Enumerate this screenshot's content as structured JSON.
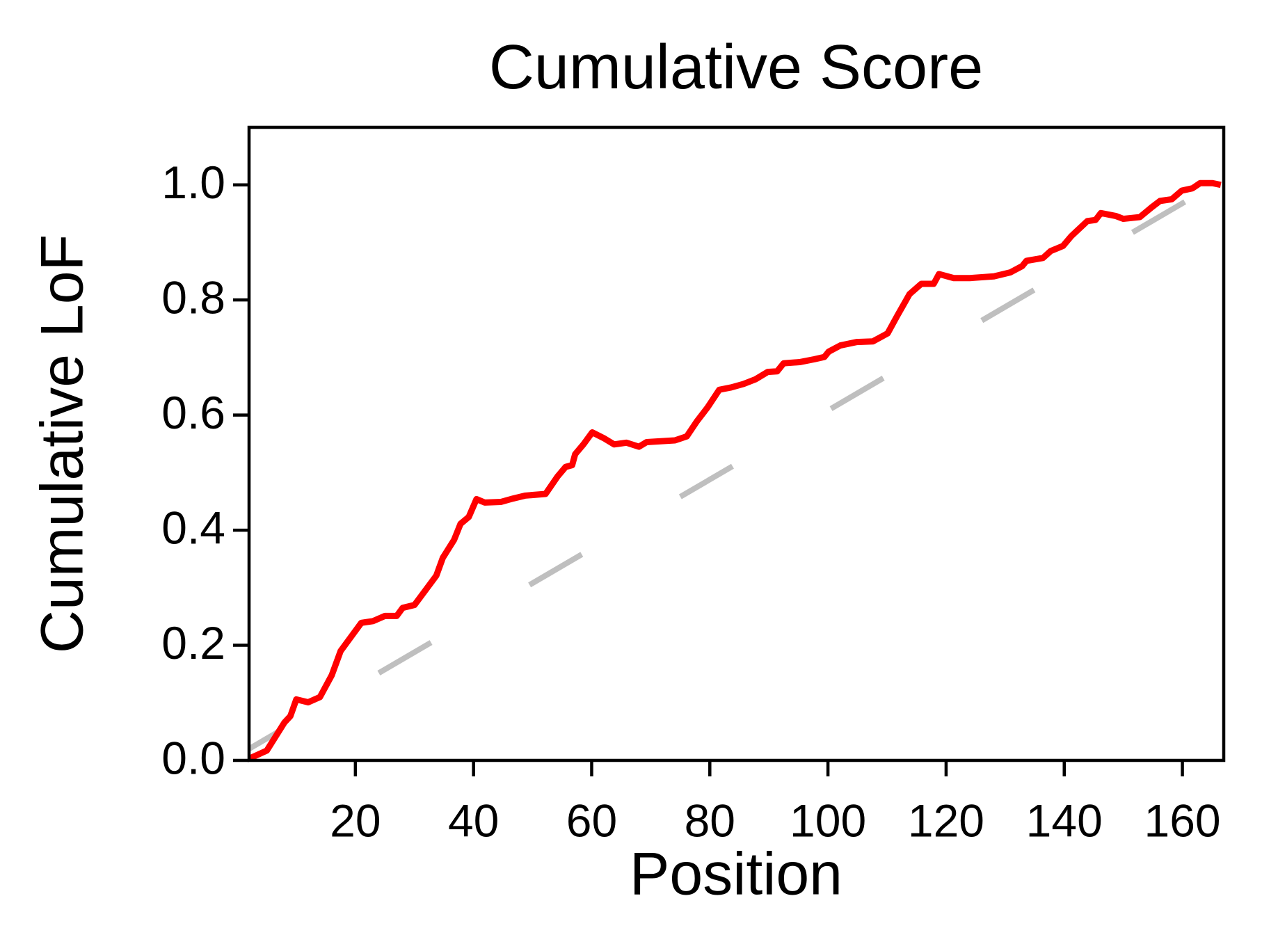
{
  "chart_data": {
    "type": "line",
    "title": "Cumulative Score",
    "x_label": "Position",
    "y_label": "Cumulative LoF",
    "xlim": [
      2,
      167
    ],
    "ylim": [
      0,
      1.1
    ],
    "xticks": [
      20,
      40,
      60,
      80,
      100,
      120,
      140,
      160
    ],
    "yticks": [
      {
        "value": 0,
        "label": "0.0"
      },
      0.2,
      0.4,
      0.6,
      0.8,
      {
        "value": 1,
        "label": "1.0"
      }
    ],
    "grid": false,
    "series": [
      {
        "color": "#bfbfbf",
        "dash": true,
        "x": [
          2,
          167
        ],
        "values": [
          0.02,
          1.01
        ]
      },
      {
        "color": "#ff0000",
        "dash": false,
        "x": [
          2,
          5,
          8,
          9,
          10,
          12,
          14,
          16,
          17.5,
          19,
          21,
          23,
          25,
          27,
          28,
          30,
          31.6,
          33.7,
          34.8,
          36.7,
          37.8,
          39.2,
          40.5,
          41.9,
          44.6,
          46.7,
          48.7,
          52.2,
          54.2,
          55.6,
          56.7,
          57.2,
          58.6,
          60.1,
          62.2,
          63.8,
          65.9,
          68,
          69.3,
          74.1,
          76.1,
          77.8,
          79.6,
          81.6,
          83.6,
          85.7,
          87.7,
          89.8,
          91.4,
          92.5,
          95.2,
          97.7,
          99.4,
          100.1,
          102.1,
          104.9,
          107.6,
          110.1,
          111.7,
          113.8,
          115.8,
          117.9,
          118.8,
          121.3,
          124,
          128.1,
          130.9,
          132.9,
          133.6,
          136.4,
          137.7,
          139.8,
          141.2,
          143.9,
          145.3,
          146.2,
          148.7,
          150,
          152.8,
          154.8,
          156.2,
          158.2,
          159.9,
          161.7,
          163,
          165.1,
          166.5
        ],
        "values": [
          0.003,
          0.017,
          0.066,
          0.077,
          0.106,
          0.101,
          0.11,
          0.148,
          0.19,
          0.211,
          0.239,
          0.242,
          0.251,
          0.251,
          0.265,
          0.27,
          0.292,
          0.321,
          0.352,
          0.383,
          0.411,
          0.423,
          0.454,
          0.448,
          0.449,
          0.455,
          0.46,
          0.463,
          0.493,
          0.51,
          0.513,
          0.532,
          0.549,
          0.57,
          0.559,
          0.549,
          0.552,
          0.545,
          0.553,
          0.556,
          0.563,
          0.589,
          0.613,
          0.644,
          0.648,
          0.654,
          0.662,
          0.675,
          0.676,
          0.69,
          0.692,
          0.697,
          0.701,
          0.71,
          0.721,
          0.727,
          0.728,
          0.742,
          0.772,
          0.81,
          0.828,
          0.828,
          0.845,
          0.838,
          0.838,
          0.841,
          0.848,
          0.859,
          0.868,
          0.873,
          0.885,
          0.894,
          0.911,
          0.937,
          0.939,
          0.951,
          0.946,
          0.941,
          0.944,
          0.961,
          0.972,
          0.975,
          0.99,
          0.994,
          1.003,
          1.003,
          1.0
        ]
      }
    ]
  }
}
